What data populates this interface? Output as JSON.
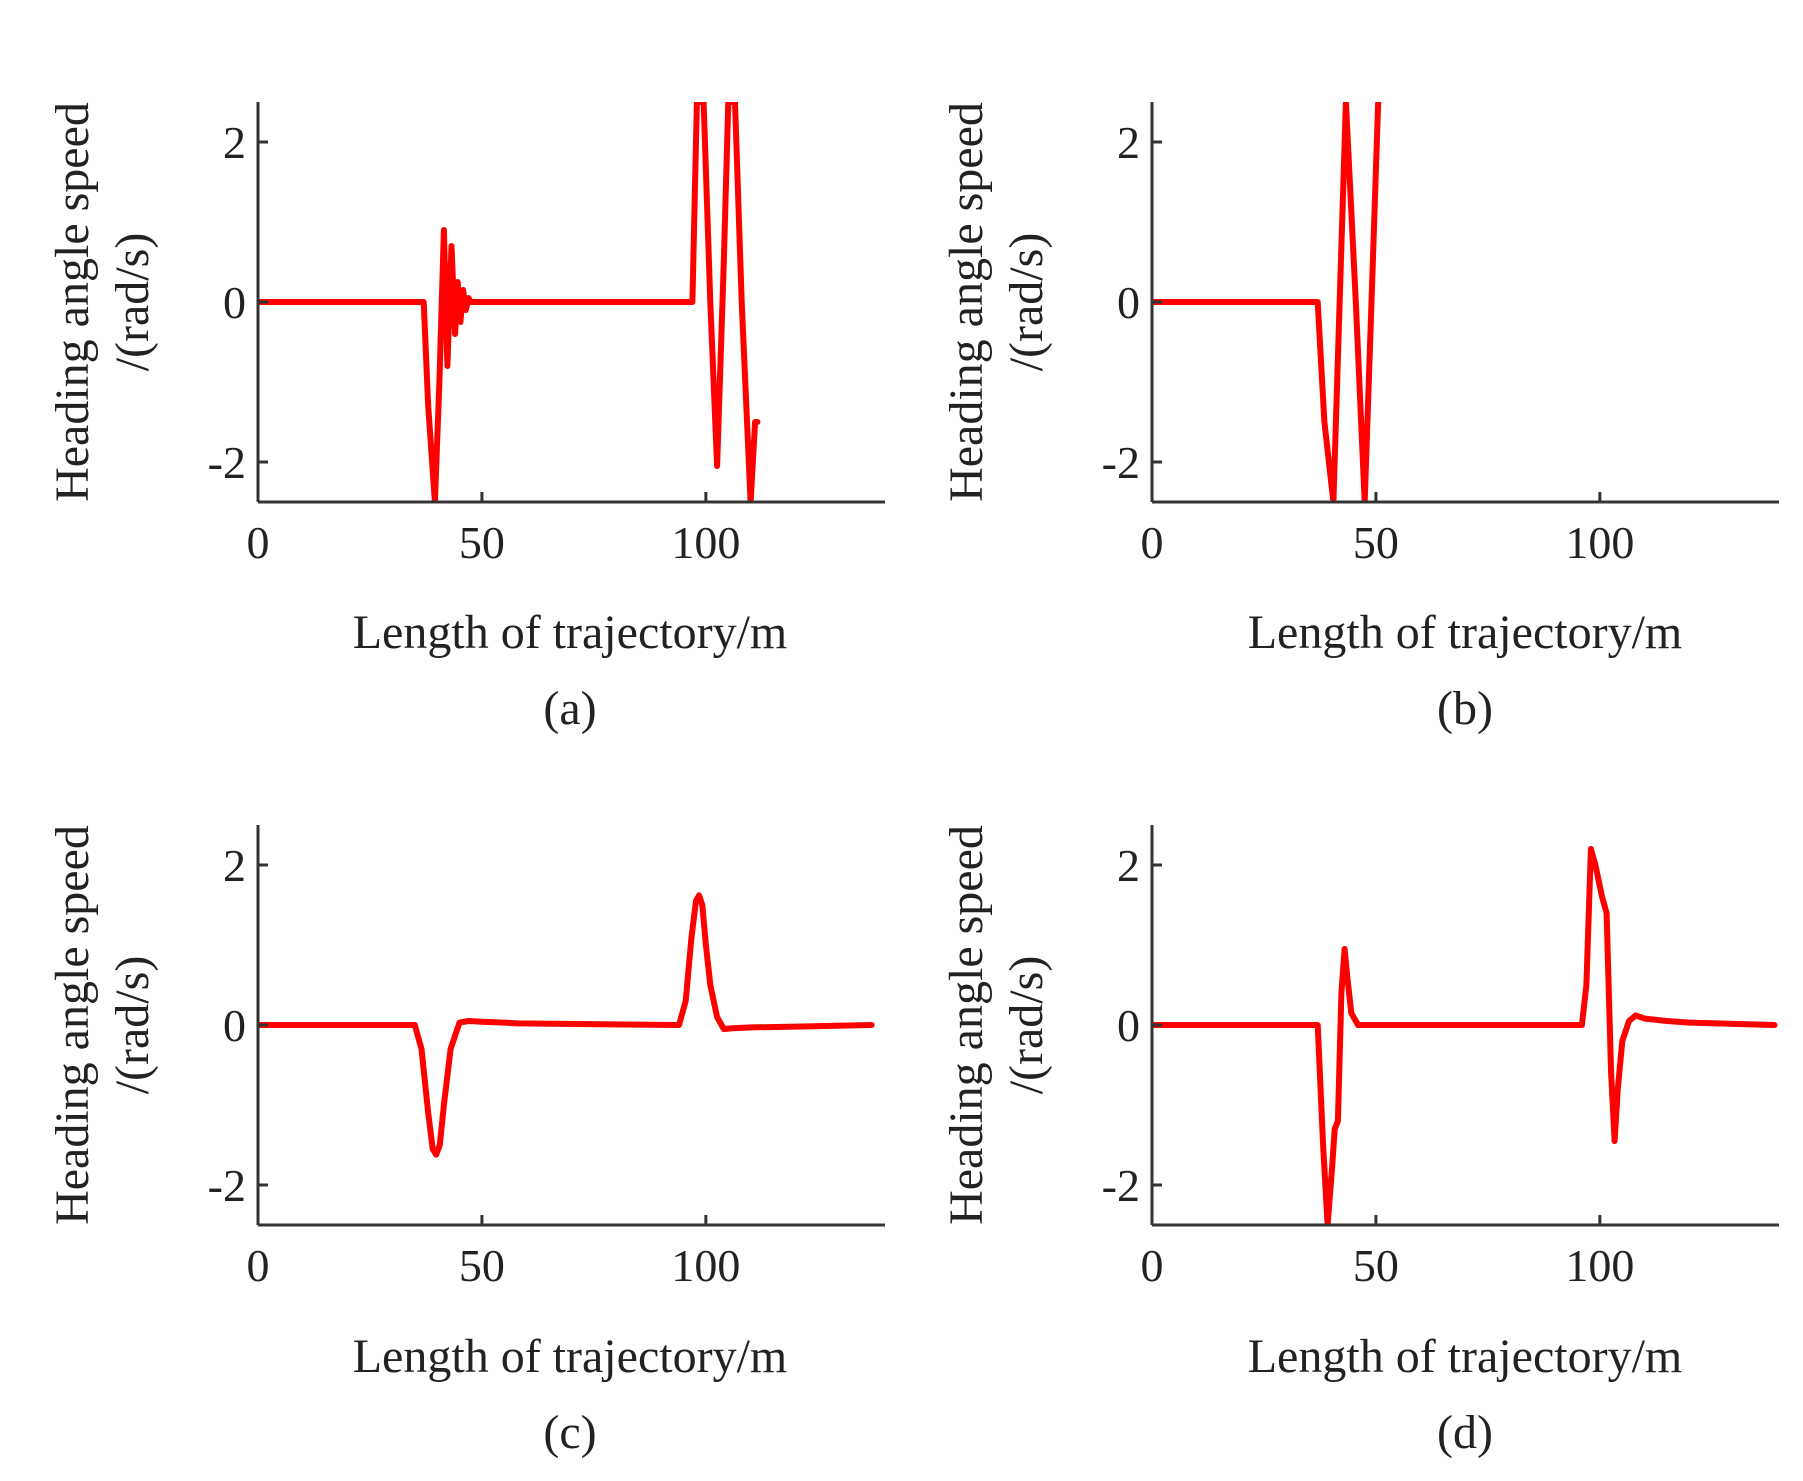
{
  "figure": {
    "series_color": "#ff0000",
    "axis_color": "#333333"
  },
  "chart_data": [
    {
      "type": "line",
      "panel": "(a)",
      "xlabel": "Length of trajectory/m",
      "ylabel": [
        "Heading angle speed",
        "/(rad/s)"
      ],
      "xlim": [
        0,
        140
      ],
      "ylim": [
        -2.5,
        2.5
      ],
      "xticks": [
        0,
        50,
        100
      ],
      "yticks": [
        2,
        0,
        -2
      ],
      "ytick_labels": [
        "2",
        "0",
        "-2"
      ],
      "series": [
        {
          "name": "heading angle speed",
          "x": [
            0,
            37,
            38,
            39.5,
            40.5,
            41.5,
            42.3,
            43.2,
            44,
            44.6,
            45.2,
            45.8,
            46.4,
            47,
            47.5,
            48,
            97,
            98,
            99.5,
            101,
            102.5,
            104,
            105,
            106.5,
            108,
            110,
            111,
            111.2,
            111.5
          ],
          "y": [
            0,
            0,
            -1.3,
            -2.5,
            -1.0,
            0.9,
            -0.8,
            0.7,
            -0.4,
            0.25,
            -0.25,
            0.15,
            -0.1,
            0.05,
            0,
            0,
            0,
            2.5,
            2.5,
            0,
            -2.05,
            0.5,
            2.5,
            2.5,
            0,
            -2.5,
            -1.5,
            -1.5,
            -1.5
          ]
        }
      ]
    },
    {
      "type": "line",
      "panel": "(b)",
      "xlabel": "Length of trajectory/m",
      "ylabel": [
        "Heading angle speed",
        "/(rad/s)"
      ],
      "xlim": [
        0,
        140
      ],
      "ylim": [
        -2.5,
        2.5
      ],
      "xticks": [
        0,
        50,
        100
      ],
      "yticks": [
        2,
        0,
        -2
      ],
      "ytick_labels": [
        "2",
        "0",
        "-2"
      ],
      "series": [
        {
          "name": "heading angle speed",
          "x": [
            0,
            37,
            38.5,
            40.5,
            43.3,
            45.5,
            47.5,
            49,
            50.5
          ],
          "y": [
            0,
            0,
            -1.5,
            -2.5,
            2.5,
            0,
            -2.5,
            0,
            2.5
          ]
        }
      ]
    },
    {
      "type": "line",
      "panel": "(c)",
      "xlabel": "Length of trajectory/m",
      "ylabel": [
        "Heading angle speed",
        "/(rad/s)"
      ],
      "xlim": [
        0,
        140
      ],
      "ylim": [
        -2.5,
        2.5
      ],
      "xticks": [
        0,
        50,
        100
      ],
      "yticks": [
        2,
        0,
        -2
      ],
      "ytick_labels": [
        "2",
        "0",
        "-2"
      ],
      "series": [
        {
          "name": "heading angle speed",
          "x": [
            0,
            35,
            36.5,
            38,
            39,
            39.8,
            40.6,
            41.5,
            43,
            45,
            47,
            50,
            55,
            58,
            94,
            95.5,
            96.8,
            97.8,
            98.5,
            99.2,
            100,
            101,
            102.5,
            104,
            106,
            110,
            120,
            137
          ],
          "y": [
            0,
            0,
            -0.3,
            -1.1,
            -1.55,
            -1.62,
            -1.5,
            -1.0,
            -0.3,
            0.03,
            0.05,
            0.04,
            0.03,
            0.02,
            0,
            0.3,
            1.1,
            1.55,
            1.62,
            1.5,
            1.0,
            0.5,
            0.1,
            -0.05,
            -0.04,
            -0.03,
            -0.02,
            0
          ]
        }
      ]
    },
    {
      "type": "line",
      "panel": "(d)",
      "xlabel": "Length of trajectory/m",
      "ylabel": [
        "Heading angle speed",
        "/(rad/s)"
      ],
      "xlim": [
        0,
        140
      ],
      "ylim": [
        -2.5,
        2.5
      ],
      "xticks": [
        0,
        50,
        100
      ],
      "yticks": [
        2,
        0,
        -2
      ],
      "ytick_labels": [
        "2",
        "0",
        "-2"
      ],
      "series": [
        {
          "name": "heading angle speed",
          "x": [
            0,
            37,
            38.2,
            39.2,
            40.2,
            40.8,
            41.5,
            42.3,
            43,
            43.6,
            44.5,
            46,
            48,
            96,
            97,
            98,
            99,
            100.5,
            101.5,
            102.5,
            103.3,
            104,
            105,
            106.5,
            108,
            110,
            115,
            120,
            139
          ],
          "y": [
            0,
            0,
            -1.5,
            -2.5,
            -1.8,
            -1.3,
            -1.2,
            0.4,
            0.95,
            0.6,
            0.15,
            0,
            0,
            0,
            0.5,
            2.2,
            2.0,
            1.6,
            1.4,
            -0.6,
            -1.45,
            -0.8,
            -0.2,
            0.05,
            0.12,
            0.08,
            0.05,
            0.03,
            0
          ]
        }
      ]
    }
  ]
}
